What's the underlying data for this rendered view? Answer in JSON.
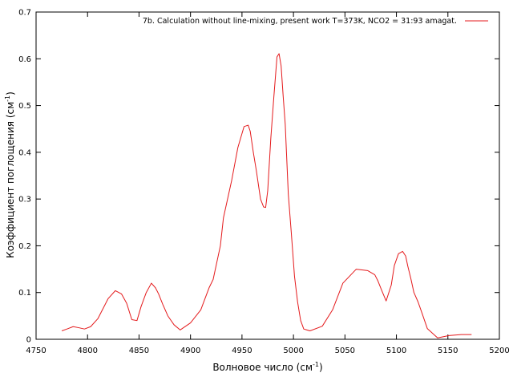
{
  "chart_data": {
    "type": "line",
    "xlabel": {
      "base": "Волновое число (см",
      "sup": "-1",
      "close": ")"
    },
    "ylabel": {
      "base": "Коэффициент поглощения (см",
      "sup": "-1",
      "close": ")"
    },
    "xlim": [
      4750,
      5200
    ],
    "ylim": [
      0,
      0.7
    ],
    "xticks": [
      "4750",
      "4800",
      "4850",
      "4900",
      "4950",
      "5000",
      "5050",
      "5100",
      "5150",
      "5200"
    ],
    "yticks": [
      "0",
      "0.1",
      "0.2",
      "0.3",
      "0.4",
      "0.5",
      "0.6",
      "0.7"
    ],
    "grid": false,
    "legend_position": "top-right",
    "series": [
      {
        "name": "7b. Calculation without line-mixing, present work T=373K, NCO2 = 31:93 amagat.",
        "color": "#e41a1c",
        "x": [
          4775,
          4780,
          4786,
          4791,
          4797,
          4803,
          4810,
          4820,
          4827,
          4833,
          4838,
          4843,
          4848,
          4852,
          4857,
          4862,
          4866,
          4869,
          4873,
          4878,
          4884,
          4890,
          4900,
          4910,
          4918,
          4922,
          4929,
          4932,
          4940,
          4946,
          4950,
          4952,
          4956,
          4958,
          4961,
          4964,
          4968,
          4971,
          4973,
          4975,
          4978,
          4981,
          4984,
          4986,
          4988,
          4990,
          4992,
          4995,
          4998,
          5001,
          5004,
          5007,
          5010,
          5016,
          5028,
          5038,
          5048,
          5061,
          5072,
          5079,
          5082,
          5086,
          5090,
          5095,
          5098,
          5102,
          5106,
          5109,
          5111,
          5114,
          5117,
          5121,
          5125,
          5130,
          5140,
          5151,
          5163,
          5173
        ],
        "y": [
          0.018,
          0.022,
          0.027,
          0.025,
          0.022,
          0.027,
          0.044,
          0.087,
          0.104,
          0.097,
          0.077,
          0.042,
          0.04,
          0.07,
          0.1,
          0.12,
          0.11,
          0.097,
          0.075,
          0.05,
          0.031,
          0.02,
          0.035,
          0.063,
          0.11,
          0.128,
          0.2,
          0.26,
          0.34,
          0.41,
          0.44,
          0.455,
          0.458,
          0.445,
          0.4,
          0.36,
          0.3,
          0.283,
          0.282,
          0.318,
          0.43,
          0.52,
          0.604,
          0.611,
          0.585,
          0.52,
          0.46,
          0.31,
          0.225,
          0.135,
          0.08,
          0.04,
          0.022,
          0.018,
          0.028,
          0.063,
          0.12,
          0.15,
          0.147,
          0.138,
          0.125,
          0.103,
          0.082,
          0.116,
          0.158,
          0.183,
          0.188,
          0.178,
          0.157,
          0.13,
          0.1,
          0.08,
          0.055,
          0.023,
          0.003,
          0.008,
          0.01,
          0.01
        ]
      }
    ]
  }
}
